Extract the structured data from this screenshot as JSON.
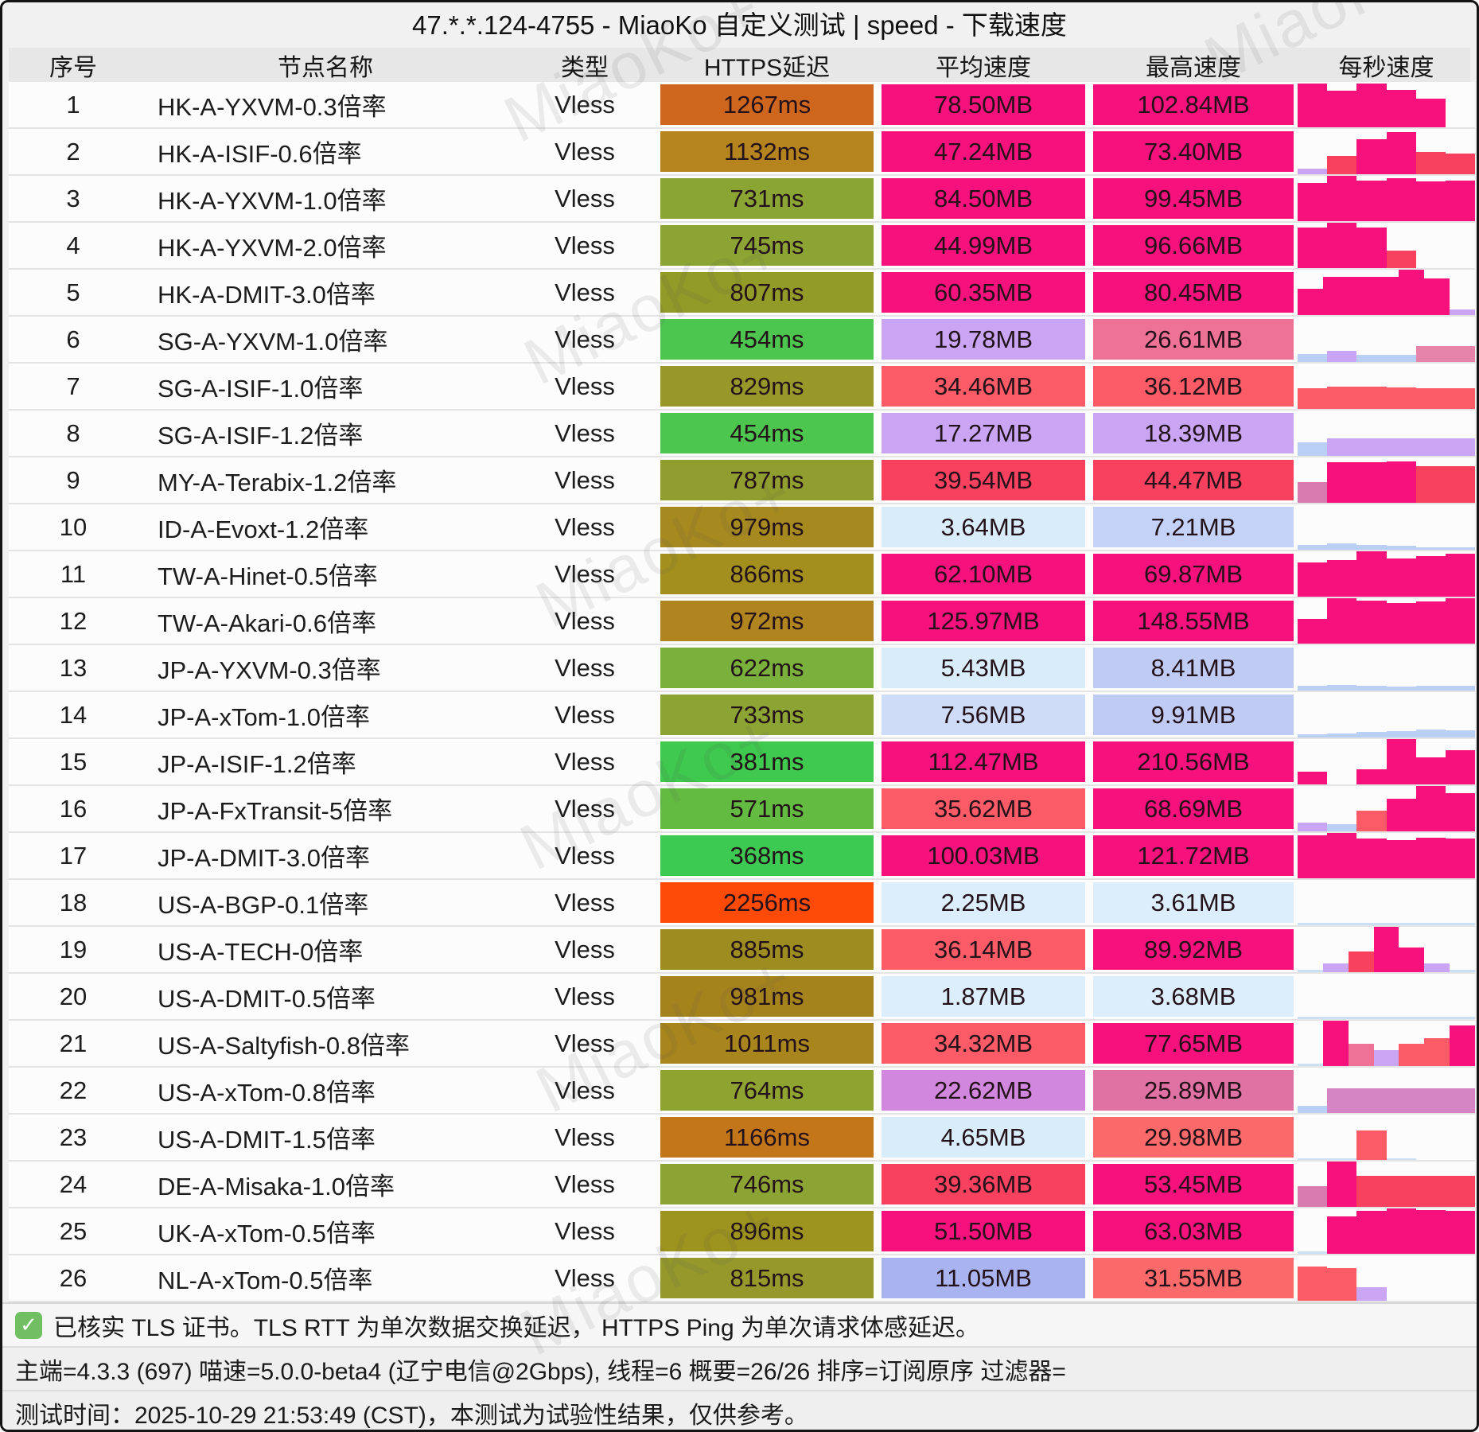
{
  "title": "47.*.*.124-4755 - MiaoKo 自定义测试 | speed - 下载速度",
  "watermark": "MiaoKo+",
  "columns": [
    "序号",
    "节点名称",
    "类型",
    "HTTPS延迟",
    "平均速度",
    "最高速度",
    "每秒速度"
  ],
  "palette": {
    "dp": "#F7117C",
    "pr": "#F8405F",
    "sa": "#FA5B66",
    "sa2": "#FA6A6A",
    "ro": "#EE7295",
    "ma": "#DF72A3",
    "or": "#D287DF",
    "ob": "#D584C4",
    "lp": "#C9A5F4",
    "lb": "#D9ECFA",
    "lb2": "#CEDCF8",
    "pw1": "#C5D2F7",
    "pw2": "#C0CBF4",
    "pw3": "#A9B3EF",
    "vb": "#DCEEFB",
    "sb": "#B9CFF3",
    "sl": "#CBDFF5",
    "rb": "#E583A8",
    "mb": "#D87BB0"
  },
  "rows": [
    {
      "no": "1",
      "name": "HK-A-YXVM-0.3倍率",
      "type": "Vless",
      "latency": "1267ms",
      "lc": "#CE661D",
      "avg": "78.50MB",
      "ac": "dp",
      "max": "102.84MB",
      "mc": "dp",
      "spark": [
        [
          0.97,
          "dp"
        ],
        [
          0.8,
          "dp"
        ],
        [
          0.97,
          "dp"
        ],
        [
          0.82,
          "dp"
        ],
        [
          0.63,
          "dp"
        ],
        [
          0,
          "dp"
        ]
      ]
    },
    {
      "no": "2",
      "name": "HK-A-ISIF-0.6倍率",
      "type": "Vless",
      "latency": "1132ms",
      "lc": "#B5841E",
      "avg": "47.24MB",
      "ac": "dp",
      "max": "73.40MB",
      "mc": "dp",
      "spark": [
        [
          0.13,
          "lp"
        ],
        [
          0.4,
          "pr"
        ],
        [
          0.78,
          "dp"
        ],
        [
          0.93,
          "dp"
        ],
        [
          0.5,
          "pr"
        ],
        [
          0.45,
          "pr"
        ]
      ]
    },
    {
      "no": "3",
      "name": "HK-A-YXVM-1.0倍率",
      "type": "Vless",
      "latency": "731ms",
      "lc": "#8BA535",
      "avg": "84.50MB",
      "ac": "dp",
      "max": "99.45MB",
      "mc": "dp",
      "spark": [
        [
          0.85,
          "dp"
        ],
        [
          1,
          "dp"
        ],
        [
          0.9,
          "dp"
        ],
        [
          0.95,
          "dp"
        ],
        [
          0.88,
          "dp"
        ],
        [
          0.9,
          "dp"
        ]
      ]
    },
    {
      "no": "4",
      "name": "HK-A-YXVM-2.0倍率",
      "type": "Vless",
      "latency": "745ms",
      "lc": "#8CA433",
      "avg": "44.99MB",
      "ac": "dp",
      "max": "96.66MB",
      "mc": "dp",
      "spark": [
        [
          0.9,
          "dp"
        ],
        [
          1,
          "dp"
        ],
        [
          0.9,
          "dp"
        ],
        [
          0.38,
          "pr"
        ],
        [
          0,
          "dp"
        ],
        [
          0,
          "dp"
        ]
      ]
    },
    {
      "no": "5",
      "name": "HK-A-DMIT-3.0倍率",
      "type": "Vless",
      "latency": "807ms",
      "lc": "#929A28",
      "avg": "60.35MB",
      "ac": "dp",
      "max": "80.45MB",
      "mc": "dp",
      "spark": [
        [
          0.58,
          "dp"
        ],
        [
          0.85,
          "dp"
        ],
        [
          0.85,
          "dp"
        ],
        [
          0.85,
          "dp"
        ],
        [
          1,
          "dp"
        ],
        [
          0.8,
          "dp"
        ],
        [
          0.12,
          "lp"
        ]
      ]
    },
    {
      "no": "6",
      "name": "SG-A-YXVM-1.0倍率",
      "type": "Vless",
      "latency": "454ms",
      "lc": "#4CC64F",
      "avg": "19.78MB",
      "ac": "lp",
      "max": "26.61MB",
      "mc": "ro",
      "spark": [
        [
          0.18,
          "sb"
        ],
        [
          0.25,
          "lp"
        ],
        [
          0.15,
          "sb"
        ],
        [
          0.15,
          "sb"
        ],
        [
          0.35,
          "rb"
        ],
        [
          0.35,
          "rb"
        ]
      ]
    },
    {
      "no": "7",
      "name": "SG-A-ISIF-1.0倍率",
      "type": "Vless",
      "latency": "829ms",
      "lc": "#97972A",
      "avg": "34.46MB",
      "ac": "sa",
      "max": "36.12MB",
      "mc": "sa",
      "spark": [
        [
          0.45,
          "sa"
        ],
        [
          0.5,
          "sa"
        ],
        [
          0.5,
          "sa"
        ],
        [
          0.48,
          "sa"
        ],
        [
          0.45,
          "sa"
        ],
        [
          0.45,
          "sa"
        ]
      ]
    },
    {
      "no": "8",
      "name": "SG-A-ISIF-1.2倍率",
      "type": "Vless",
      "latency": "454ms",
      "lc": "#4CC64F",
      "avg": "17.27MB",
      "ac": "lp",
      "max": "18.39MB",
      "mc": "lp",
      "spark": [
        [
          0.3,
          "sb"
        ],
        [
          0.38,
          "lp"
        ],
        [
          0.38,
          "lp"
        ],
        [
          0.38,
          "lp"
        ],
        [
          0.38,
          "lp"
        ],
        [
          0.38,
          "lp"
        ]
      ]
    },
    {
      "no": "9",
      "name": "MY-A-Terabix-1.2倍率",
      "type": "Vless",
      "latency": "787ms",
      "lc": "#8F9E2E",
      "avg": "39.54MB",
      "ac": "pr",
      "max": "44.47MB",
      "mc": "pr",
      "spark": [
        [
          0.45,
          "mb"
        ],
        [
          0.9,
          "dp"
        ],
        [
          0.9,
          "dp"
        ],
        [
          0.92,
          "dp"
        ],
        [
          0.8,
          "pr"
        ],
        [
          0.8,
          "pr"
        ]
      ]
    },
    {
      "no": "10",
      "name": "ID-A-Evoxt-1.2倍率",
      "type": "Vless",
      "latency": "979ms",
      "lc": "#A68A1F",
      "avg": "3.64MB",
      "ac": "lb",
      "max": "7.21MB",
      "mc": "pw1",
      "spark": [
        [
          0.1,
          "sb"
        ],
        [
          0.14,
          "sb"
        ],
        [
          0.1,
          "sb"
        ],
        [
          0.08,
          "sb"
        ],
        [
          0.06,
          "sb"
        ],
        [
          0.05,
          "sb"
        ]
      ]
    },
    {
      "no": "11",
      "name": "TW-A-Hinet-0.5倍率",
      "type": "Vless",
      "latency": "866ms",
      "lc": "#A38F1E",
      "avg": "62.10MB",
      "ac": "dp",
      "max": "69.87MB",
      "mc": "dp",
      "spark": [
        [
          0.75,
          "dp"
        ],
        [
          0.8,
          "dp"
        ],
        [
          1,
          "dp"
        ],
        [
          0.85,
          "dp"
        ],
        [
          0.9,
          "dp"
        ],
        [
          0.95,
          "dp"
        ]
      ]
    },
    {
      "no": "12",
      "name": "TW-A-Akari-0.6倍率",
      "type": "Vless",
      "latency": "972ms",
      "lc": "#B08520",
      "avg": "125.97MB",
      "ac": "dp",
      "max": "148.55MB",
      "mc": "dp",
      "spark": [
        [
          0.55,
          "dp"
        ],
        [
          1,
          "dp"
        ],
        [
          0.95,
          "dp"
        ],
        [
          0.9,
          "dp"
        ],
        [
          0.93,
          "dp"
        ],
        [
          1,
          "dp"
        ]
      ]
    },
    {
      "no": "13",
      "name": "JP-A-YXVM-0.3倍率",
      "type": "Vless",
      "latency": "622ms",
      "lc": "#79B13C",
      "avg": "5.43MB",
      "ac": "lb",
      "max": "8.41MB",
      "mc": "pw2",
      "spark": [
        [
          0.1,
          "sb"
        ],
        [
          0.12,
          "sb"
        ],
        [
          0.1,
          "sb"
        ],
        [
          0.09,
          "sb"
        ],
        [
          0.1,
          "sb"
        ],
        [
          0.1,
          "sb"
        ]
      ]
    },
    {
      "no": "14",
      "name": "JP-A-xTom-1.0倍率",
      "type": "Vless",
      "latency": "733ms",
      "lc": "#8CA433",
      "avg": "7.56MB",
      "ac": "lb2",
      "max": "9.91MB",
      "mc": "pw2",
      "spark": [
        [
          0.07,
          "sb"
        ],
        [
          0.09,
          "sb"
        ],
        [
          0.12,
          "sb"
        ],
        [
          0.14,
          "sb"
        ],
        [
          0.17,
          "sb"
        ],
        [
          0.15,
          "sb"
        ]
      ]
    },
    {
      "no": "15",
      "name": "JP-A-ISIF-1.2倍率",
      "type": "Vless",
      "latency": "381ms",
      "lc": "#3FC94F",
      "avg": "112.47MB",
      "ac": "dp",
      "max": "210.56MB",
      "mc": "dp",
      "spark": [
        [
          0.28,
          "dp"
        ],
        [
          0,
          "dp"
        ],
        [
          0.33,
          "dp"
        ],
        [
          1,
          "dp"
        ],
        [
          0.6,
          "dp"
        ],
        [
          0.75,
          "dp"
        ]
      ]
    },
    {
      "no": "16",
      "name": "JP-A-FxTransit-5倍率",
      "type": "Vless",
      "latency": "571ms",
      "lc": "#63BB42",
      "avg": "35.62MB",
      "ac": "sa",
      "max": "68.69MB",
      "mc": "dp",
      "spark": [
        [
          0.2,
          "lp"
        ],
        [
          0.15,
          "sb"
        ],
        [
          0.45,
          "sa"
        ],
        [
          0.72,
          "dp"
        ],
        [
          1,
          "dp"
        ],
        [
          0.85,
          "dp"
        ]
      ]
    },
    {
      "no": "17",
      "name": "JP-A-DMIT-3.0倍率",
      "type": "Vless",
      "latency": "368ms",
      "lc": "#3CCA52",
      "avg": "100.03MB",
      "ac": "dp",
      "max": "121.72MB",
      "mc": "dp",
      "spark": [
        [
          0.95,
          "dp"
        ],
        [
          1,
          "dp"
        ],
        [
          0.88,
          "dp"
        ],
        [
          0.85,
          "dp"
        ],
        [
          0.9,
          "dp"
        ],
        [
          0.87,
          "dp"
        ]
      ]
    },
    {
      "no": "18",
      "name": "US-A-BGP-0.1倍率",
      "type": "Vless",
      "latency": "2256ms",
      "lc": "#FD4A07",
      "avg": "2.25MB",
      "ac": "vb",
      "max": "3.61MB",
      "mc": "vb",
      "spark": [
        [
          0.06,
          "sl"
        ],
        [
          0.06,
          "sl"
        ],
        [
          0.06,
          "sl"
        ],
        [
          0.06,
          "sl"
        ],
        [
          0.06,
          "sl"
        ],
        [
          0.06,
          "sl"
        ]
      ]
    },
    {
      "no": "19",
      "name": "US-A-TECH-0倍率",
      "type": "Vless",
      "latency": "885ms",
      "lc": "#9D8C1F",
      "avg": "36.14MB",
      "ac": "sa",
      "max": "89.92MB",
      "mc": "dp",
      "spark": [
        [
          0.05,
          "sl"
        ],
        [
          0.2,
          "lp"
        ],
        [
          0.45,
          "pr"
        ],
        [
          1,
          "dp"
        ],
        [
          0.55,
          "dp"
        ],
        [
          0.2,
          "lp"
        ],
        [
          0.05,
          "sl"
        ]
      ]
    },
    {
      "no": "20",
      "name": "US-A-DMIT-0.5倍率",
      "type": "Vless",
      "latency": "981ms",
      "lc": "#A5831C",
      "avg": "1.87MB",
      "ac": "vb",
      "max": "3.68MB",
      "mc": "vb",
      "spark": [
        [
          0.05,
          "sl"
        ],
        [
          0.05,
          "sl"
        ],
        [
          0.05,
          "sl"
        ],
        [
          0.05,
          "sl"
        ],
        [
          0.05,
          "sl"
        ],
        [
          0.05,
          "sl"
        ]
      ]
    },
    {
      "no": "21",
      "name": "US-A-Saltyfish-0.8倍率",
      "type": "Vless",
      "latency": "1011ms",
      "lc": "#A8861D",
      "avg": "34.32MB",
      "ac": "sa",
      "max": "77.65MB",
      "mc": "dp",
      "spark": [
        [
          0.05,
          "sl"
        ],
        [
          1,
          "dp"
        ],
        [
          0.5,
          "ro"
        ],
        [
          0.35,
          "lp"
        ],
        [
          0.5,
          "sa"
        ],
        [
          0.62,
          "sa"
        ],
        [
          0.9,
          "dp"
        ]
      ]
    },
    {
      "no": "22",
      "name": "US-A-xTom-0.8倍率",
      "type": "Vless",
      "latency": "764ms",
      "lc": "#8FA430",
      "avg": "22.62MB",
      "ac": "or",
      "max": "25.89MB",
      "mc": "ma",
      "spark": [
        [
          0.15,
          "sb"
        ],
        [
          0.55,
          "ob"
        ],
        [
          0.55,
          "ob"
        ],
        [
          0.55,
          "ob"
        ],
        [
          0.55,
          "ob"
        ],
        [
          0.55,
          "ob"
        ]
      ]
    },
    {
      "no": "23",
      "name": "US-A-DMIT-1.5倍率",
      "type": "Vless",
      "latency": "1166ms",
      "lc": "#C37519",
      "avg": "4.65MB",
      "ac": "lb",
      "max": "29.98MB",
      "mc": "sa2",
      "spark": [
        [
          0.04,
          "sl"
        ],
        [
          0.04,
          "sl"
        ],
        [
          0.65,
          "sa"
        ],
        [
          0.04,
          "sl"
        ],
        [
          0,
          "sl"
        ],
        [
          0,
          "sl"
        ]
      ]
    },
    {
      "no": "24",
      "name": "DE-A-Misaka-1.0倍率",
      "type": "Vless",
      "latency": "746ms",
      "lc": "#8CA433",
      "avg": "39.36MB",
      "ac": "pr",
      "max": "53.45MB",
      "mc": "dp",
      "spark": [
        [
          0.45,
          "mb"
        ],
        [
          1,
          "dp"
        ],
        [
          0.68,
          "pr"
        ],
        [
          0.68,
          "pr"
        ],
        [
          0.68,
          "pr"
        ],
        [
          0.68,
          "pr"
        ]
      ]
    },
    {
      "no": "25",
      "name": "UK-A-xTom-0.5倍率",
      "type": "Vless",
      "latency": "896ms",
      "lc": "#9C941F",
      "avg": "51.50MB",
      "ac": "dp",
      "max": "63.03MB",
      "mc": "dp",
      "spark": [
        [
          0.05,
          "sl"
        ],
        [
          0.82,
          "dp"
        ],
        [
          0.95,
          "dp"
        ],
        [
          1,
          "dp"
        ],
        [
          0.97,
          "dp"
        ],
        [
          0.95,
          "dp"
        ]
      ]
    },
    {
      "no": "26",
      "name": "NL-A-xTom-0.5倍率",
      "type": "Vless",
      "latency": "815ms",
      "lc": "#95992C",
      "avg": "11.05MB",
      "ac": "pw3",
      "max": "31.55MB",
      "mc": "sa2",
      "spark": [
        [
          0.75,
          "sa"
        ],
        [
          0.72,
          "sa"
        ],
        [
          0.3,
          "lp"
        ],
        [
          0,
          "sl"
        ],
        [
          0,
          "sl"
        ],
        [
          0,
          "sl"
        ]
      ]
    }
  ],
  "footer": {
    "check": "✓",
    "line1": "已核实 TLS 证书。TLS RTT 为单次数据交换延迟， HTTPS Ping 为单次请求体感延迟。",
    "line2": "主端=4.3.3 (697) 喵速=5.0.0-beta4 (辽宁电信@2Gbps), 线程=6 概要=26/26 排序=订阅原序 过滤器=",
    "line3": "测试时间：2025-10-29 21:53:49 (CST)，本测试为试验性结果，仅供参考。"
  }
}
